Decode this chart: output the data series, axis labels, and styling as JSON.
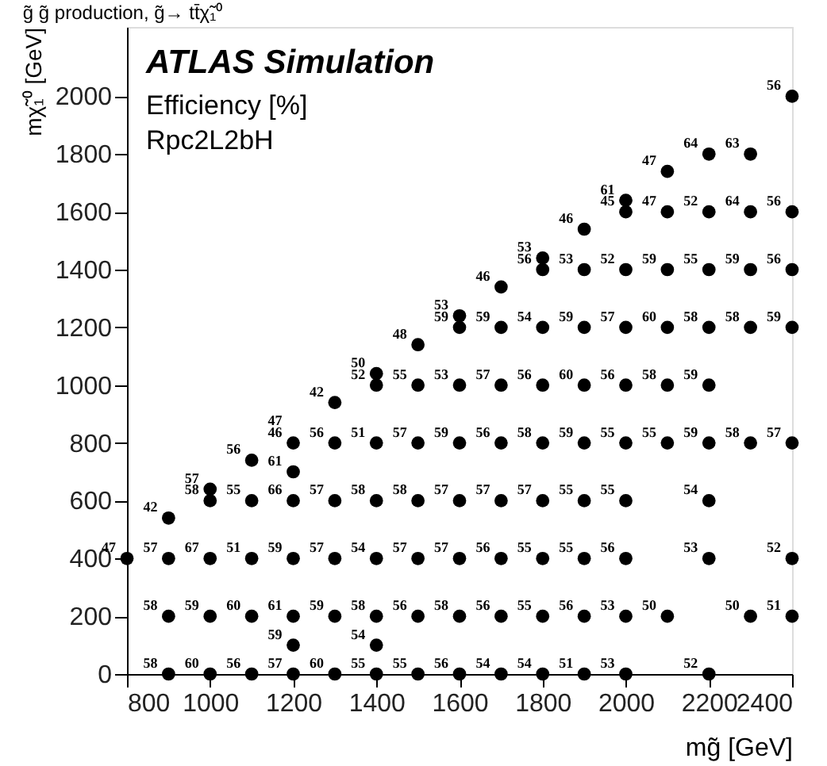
{
  "chart_data": {
    "type": "scatter",
    "title": "g̃ g̃ production, g̃→ tt̄χ̃₁⁰",
    "xlabel": "mg̃ [GeV]",
    "ylabel": "mχ̃₁⁰ [GeV]",
    "annotations": [
      "ATLAS Simulation",
      "Efficiency [%]",
      "Rpc2L2bH",
      {
        "text": "58",
        "x": 900,
        "y": 0
      },
      {
        "text": "60",
        "x": 1000,
        "y": 0
      },
      {
        "text": "56",
        "x": 1100,
        "y": 0
      },
      {
        "text": "57",
        "x": 1200,
        "y": 0
      },
      {
        "text": "60",
        "x": 1300,
        "y": 0
      },
      {
        "text": "55",
        "x": 1400,
        "y": 0
      },
      {
        "text": "55",
        "x": 1500,
        "y": 0
      },
      {
        "text": "56",
        "x": 1600,
        "y": 0
      },
      {
        "text": "54",
        "x": 1700,
        "y": 0
      },
      {
        "text": "54",
        "x": 1800,
        "y": 0
      },
      {
        "text": "51",
        "x": 1900,
        "y": 0
      },
      {
        "text": "53",
        "x": 2000,
        "y": 0
      },
      {
        "text": "52",
        "x": 2200,
        "y": 0
      },
      {
        "text": "59",
        "x": 1200,
        "y": 100
      },
      {
        "text": "54",
        "x": 1400,
        "y": 100
      },
      {
        "text": "58",
        "x": 900,
        "y": 200
      },
      {
        "text": "59",
        "x": 1000,
        "y": 200
      },
      {
        "text": "60",
        "x": 1100,
        "y": 200
      },
      {
        "text": "61",
        "x": 1200,
        "y": 200
      },
      {
        "text": "59",
        "x": 1300,
        "y": 200
      },
      {
        "text": "58",
        "x": 1400,
        "y": 200
      },
      {
        "text": "56",
        "x": 1500,
        "y": 200
      },
      {
        "text": "58",
        "x": 1600,
        "y": 200
      },
      {
        "text": "56",
        "x": 1700,
        "y": 200
      },
      {
        "text": "55",
        "x": 1800,
        "y": 200
      },
      {
        "text": "56",
        "x": 1900,
        "y": 200
      },
      {
        "text": "53",
        "x": 2000,
        "y": 200
      },
      {
        "text": "50",
        "x": 2100,
        "y": 200
      },
      {
        "text": "50",
        "x": 2300,
        "y": 200
      },
      {
        "text": "51",
        "x": 2400,
        "y": 200
      },
      {
        "text": "47",
        "x": 800,
        "y": 400
      },
      {
        "text": "57",
        "x": 900,
        "y": 400
      },
      {
        "text": "67",
        "x": 1000,
        "y": 400
      },
      {
        "text": "51",
        "x": 1100,
        "y": 400
      },
      {
        "text": "59",
        "x": 1200,
        "y": 400
      },
      {
        "text": "57",
        "x": 1300,
        "y": 400
      },
      {
        "text": "54",
        "x": 1400,
        "y": 400
      },
      {
        "text": "57",
        "x": 1500,
        "y": 400
      },
      {
        "text": "57",
        "x": 1600,
        "y": 400
      },
      {
        "text": "56",
        "x": 1700,
        "y": 400
      },
      {
        "text": "55",
        "x": 1800,
        "y": 400
      },
      {
        "text": "55",
        "x": 1900,
        "y": 400
      },
      {
        "text": "56",
        "x": 2000,
        "y": 400
      },
      {
        "text": "53",
        "x": 2200,
        "y": 400
      },
      {
        "text": "52",
        "x": 2400,
        "y": 400
      },
      {
        "text": "42",
        "x": 900,
        "y": 540
      },
      {
        "text": "58",
        "x": 1000,
        "y": 600
      },
      {
        "text": "55",
        "x": 1100,
        "y": 600
      },
      {
        "text": "66",
        "x": 1200,
        "y": 600
      },
      {
        "text": "57",
        "x": 1300,
        "y": 600
      },
      {
        "text": "58",
        "x": 1400,
        "y": 600
      },
      {
        "text": "58",
        "x": 1500,
        "y": 600
      },
      {
        "text": "57",
        "x": 1600,
        "y": 600
      },
      {
        "text": "57",
        "x": 1700,
        "y": 600
      },
      {
        "text": "57",
        "x": 1800,
        "y": 600
      },
      {
        "text": "55",
        "x": 1900,
        "y": 600
      },
      {
        "text": "55",
        "x": 2000,
        "y": 600
      },
      {
        "text": "54",
        "x": 2200,
        "y": 600
      },
      {
        "text": "57",
        "x": 1000,
        "y": 640
      },
      {
        "text": "56",
        "x": 1100,
        "y": 740
      },
      {
        "text": "61",
        "x": 1200,
        "y": 700
      },
      {
        "text": "46",
        "x": 1200,
        "y": 800
      },
      {
        "text": "56",
        "x": 1300,
        "y": 800
      },
      {
        "text": "51",
        "x": 1400,
        "y": 800
      },
      {
        "text": "57",
        "x": 1500,
        "y": 800
      },
      {
        "text": "59",
        "x": 1600,
        "y": 800
      },
      {
        "text": "56",
        "x": 1700,
        "y": 800
      },
      {
        "text": "58",
        "x": 1800,
        "y": 800
      },
      {
        "text": "59",
        "x": 1900,
        "y": 800
      },
      {
        "text": "55",
        "x": 2000,
        "y": 800
      },
      {
        "text": "55",
        "x": 2100,
        "y": 800
      },
      {
        "text": "59",
        "x": 2200,
        "y": 800
      },
      {
        "text": "58",
        "x": 2300,
        "y": 800
      },
      {
        "text": "57",
        "x": 2400,
        "y": 800
      },
      {
        "text": "47",
        "x": 1200,
        "y": 840
      },
      {
        "text": "42",
        "x": 1300,
        "y": 940
      },
      {
        "text": "52",
        "x": 1400,
        "y": 1000
      },
      {
        "text": "55",
        "x": 1500,
        "y": 1000
      },
      {
        "text": "53",
        "x": 1600,
        "y": 1000
      },
      {
        "text": "57",
        "x": 1700,
        "y": 1000
      },
      {
        "text": "56",
        "x": 1800,
        "y": 1000
      },
      {
        "text": "60",
        "x": 1900,
        "y": 1000
      },
      {
        "text": "56",
        "x": 2000,
        "y": 1000
      },
      {
        "text": "58",
        "x": 2100,
        "y": 1000
      },
      {
        "text": "59",
        "x": 2200,
        "y": 1000
      },
      {
        "text": "50",
        "x": 1400,
        "y": 1040
      },
      {
        "text": "48",
        "x": 1500,
        "y": 1140
      },
      {
        "text": "59",
        "x": 1600,
        "y": 1200
      },
      {
        "text": "59",
        "x": 1700,
        "y": 1200
      },
      {
        "text": "54",
        "x": 1800,
        "y": 1200
      },
      {
        "text": "59",
        "x": 1900,
        "y": 1200
      },
      {
        "text": "57",
        "x": 2000,
        "y": 1200
      },
      {
        "text": "60",
        "x": 2100,
        "y": 1200
      },
      {
        "text": "58",
        "x": 2200,
        "y": 1200
      },
      {
        "text": "58",
        "x": 2300,
        "y": 1200
      },
      {
        "text": "59",
        "x": 2400,
        "y": 1200
      },
      {
        "text": "53",
        "x": 1600,
        "y": 1240
      },
      {
        "text": "46",
        "x": 1700,
        "y": 1340
      },
      {
        "text": "56",
        "x": 1800,
        "y": 1400
      },
      {
        "text": "53",
        "x": 1900,
        "y": 1400
      },
      {
        "text": "52",
        "x": 2000,
        "y": 1400
      },
      {
        "text": "59",
        "x": 2100,
        "y": 1400
      },
      {
        "text": "55",
        "x": 2200,
        "y": 1400
      },
      {
        "text": "59",
        "x": 2300,
        "y": 1400
      },
      {
        "text": "56",
        "x": 2400,
        "y": 1400
      },
      {
        "text": "53",
        "x": 1800,
        "y": 1440
      },
      {
        "text": "46",
        "x": 1900,
        "y": 1540
      },
      {
        "text": "45",
        "x": 2000,
        "y": 1600
      },
      {
        "text": "47",
        "x": 2100,
        "y": 1600
      },
      {
        "text": "52",
        "x": 2200,
        "y": 1600
      },
      {
        "text": "64",
        "x": 2300,
        "y": 1600
      },
      {
        "text": "56",
        "x": 2400,
        "y": 1600
      },
      {
        "text": "61",
        "x": 2000,
        "y": 1640
      },
      {
        "text": "47",
        "x": 2100,
        "y": 1740
      },
      {
        "text": "64",
        "x": 2200,
        "y": 1800
      },
      {
        "text": "63",
        "x": 2300,
        "y": 1800
      },
      {
        "text": "56",
        "x": 2400,
        "y": 2000
      }
    ],
    "xlim": [
      800,
      2400
    ],
    "xticks": [
      800,
      1000,
      1200,
      1400,
      1600,
      1800,
      2000,
      2200,
      2400
    ],
    "ylim": [
      0,
      2240
    ],
    "yticks": [
      0,
      200,
      400,
      600,
      800,
      1000,
      1200,
      1400,
      1600,
      1800,
      2000
    ],
    "grid": false,
    "marker": "circle",
    "series": [
      {
        "color": "#000000",
        "x": [
          900,
          1000,
          1100,
          1200,
          1300,
          1400,
          1500,
          1600,
          1700,
          1800,
          1900,
          2000,
          2200,
          1200,
          1400,
          900,
          1000,
          1100,
          1200,
          1300,
          1400,
          1500,
          1600,
          1700,
          1800,
          1900,
          2000,
          2100,
          2300,
          2400,
          800,
          900,
          1000,
          1100,
          1200,
          1300,
          1400,
          1500,
          1600,
          1700,
          1800,
          1900,
          2000,
          2200,
          2400,
          900,
          1000,
          1100,
          1200,
          1300,
          1400,
          1500,
          1600,
          1700,
          1800,
          1900,
          2000,
          2200,
          1000,
          1100,
          1200,
          1200,
          1300,
          1400,
          1500,
          1600,
          1700,
          1800,
          1900,
          2000,
          2100,
          2200,
          2300,
          2400,
          1300,
          1400,
          1400,
          1500,
          1600,
          1700,
          1800,
          1900,
          2000,
          2100,
          2200,
          1500,
          1600,
          1600,
          1700,
          1800,
          1900,
          2000,
          2100,
          2200,
          2300,
          2400,
          1700,
          1800,
          1800,
          1900,
          2000,
          2100,
          2200,
          2300,
          2400,
          1900,
          2000,
          2000,
          2100,
          2100,
          2200,
          2300,
          2400,
          2200,
          2300,
          2400
        ],
        "values": [
          0,
          0,
          0,
          0,
          0,
          0,
          0,
          0,
          0,
          0,
          0,
          0,
          0,
          100,
          100,
          200,
          200,
          200,
          200,
          200,
          200,
          200,
          200,
          200,
          200,
          200,
          200,
          200,
          200,
          200,
          400,
          400,
          400,
          400,
          400,
          400,
          400,
          400,
          400,
          400,
          400,
          400,
          400,
          400,
          400,
          540,
          600,
          600,
          600,
          600,
          600,
          600,
          600,
          600,
          600,
          600,
          600,
          600,
          640,
          740,
          700,
          800,
          800,
          800,
          800,
          800,
          800,
          800,
          800,
          800,
          800,
          800,
          800,
          800,
          940,
          1000,
          1040,
          1000,
          1000,
          1000,
          1000,
          1000,
          1000,
          1000,
          1000,
          1140,
          1200,
          1240,
          1200,
          1200,
          1200,
          1200,
          1200,
          1200,
          1200,
          1200,
          1340,
          1400,
          1440,
          1400,
          1400,
          1400,
          1400,
          1400,
          1400,
          1540,
          1600,
          1640,
          1600,
          1740,
          1600,
          1600,
          1600,
          1800,
          1800,
          2000
        ]
      }
    ]
  }
}
